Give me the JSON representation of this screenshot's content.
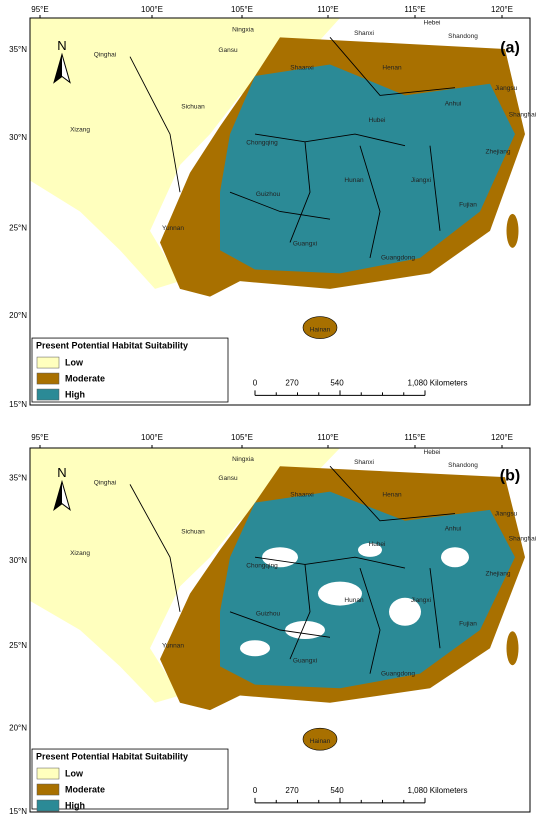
{
  "panels": [
    {
      "label": "(a)",
      "north": "N",
      "longitudes": [
        "95°E",
        "100°E",
        "105°E",
        "110°E",
        "115°E",
        "120°E"
      ],
      "latitudes": [
        "35°N",
        "30°N",
        "25°N",
        "20°N",
        "15°N"
      ],
      "provinces": [
        "Qinghai",
        "Gansu",
        "Ningxia",
        "Shaanxi",
        "Shanxi",
        "Hebei",
        "Shandong",
        "Henan",
        "Jiangsu",
        "Anhui",
        "Shanghai",
        "Hubei",
        "Sichuan",
        "Xizang",
        "Chongqing",
        "Zhejiang",
        "Hunan",
        "Jiangxi",
        "Guizhou",
        "Fujian",
        "Yunnan",
        "Guangxi",
        "Guangdong",
        "Hainan"
      ],
      "legend": {
        "title": "Present Potential Habitat Suitability",
        "items": [
          {
            "label": "Low",
            "color": "#ffffbe"
          },
          {
            "label": "Moderate",
            "color": "#a87000"
          },
          {
            "label": "High",
            "color": "#2b8a96"
          }
        ]
      },
      "scale": {
        "ticks": [
          "0",
          "270",
          "540"
        ],
        "end": "1,080 Kilometers"
      }
    },
    {
      "label": "(b)",
      "north": "N",
      "longitudes": [
        "95°E",
        "100°E",
        "105°E",
        "110°E",
        "115°E",
        "120°E"
      ],
      "latitudes": [
        "35°N",
        "30°N",
        "25°N",
        "20°N",
        "15°N"
      ],
      "provinces": [
        "Qinghai",
        "Gansu",
        "Ningxia",
        "Shaanxi",
        "Shanxi",
        "Hebei",
        "Shandong",
        "Henan",
        "Jiangsu",
        "Anhui",
        "Shanghai",
        "Hubei",
        "Sichuan",
        "Xizang",
        "Chongqing",
        "Zhejiang",
        "Hunan",
        "Jiangxi",
        "Guizhou",
        "Fujian",
        "Yunnan",
        "Guangxi",
        "Guangdong",
        "Hainan"
      ],
      "legend": {
        "title": "Present Potential Habitat Suitability",
        "items": [
          {
            "label": "Low",
            "color": "#ffffbe"
          },
          {
            "label": "Moderate",
            "color": "#a87000"
          },
          {
            "label": "High",
            "color": "#2b8a96"
          }
        ]
      },
      "scale": {
        "ticks": [
          "0",
          "270",
          "540"
        ],
        "end": "1,080 Kilometers"
      }
    }
  ]
}
